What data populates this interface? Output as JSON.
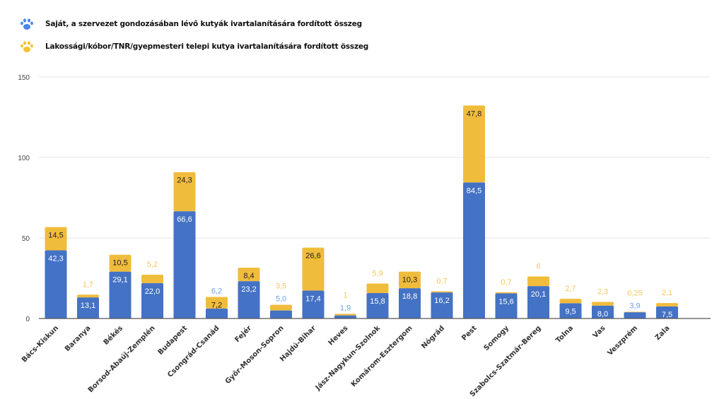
{
  "legend": [
    {
      "label": "Saját, a szervezet gondozásában lévő kutyák ivartalanítására fordított összeg",
      "icon": "paw-icon",
      "color": "#4a86e8"
    },
    {
      "label": "Lakossági/kóbor/TNR/gyepmesteri telepi kutya ivartalanítására fordított összeg",
      "icon": "paw-icon",
      "color": "#f1c232"
    }
  ],
  "chart_data": {
    "type": "bar",
    "stacked": true,
    "title": "",
    "xlabel": "",
    "ylabel": "",
    "ylim": [
      0,
      150
    ],
    "yticks": [
      "0",
      "50",
      "100",
      "150"
    ],
    "grid": true,
    "legend_position": "top-left",
    "categories": [
      "Bács-Kiskun",
      "Baranya",
      "Békés",
      "Borsod-Abaúj-Zemplén",
      "Budapest",
      "Csongrád-Csanád",
      "Fejér",
      "Győr-Moson-Sopron",
      "Hajdú-Bihar",
      "Heves",
      "Jász-Nagykun-Szolnok",
      "Komárom-Esztergom",
      "Nógrád",
      "Pest",
      "Somogy",
      "Szabolcs-Szatmár-Bereg",
      "Tolna",
      "Vas",
      "Veszprém",
      "Zala"
    ],
    "series": [
      {
        "name": "Saját, a szervezet gondozásában lévő kutyák ivartalanítására fordított összeg",
        "color": "#4472c4",
        "labelColor": "#6d9eeb",
        "values": [
          42.3,
          13.1,
          29.1,
          22.0,
          66.6,
          6.2,
          23.2,
          5.0,
          17.4,
          1.9,
          15.8,
          18.8,
          16.2,
          84.5,
          15.6,
          20.1,
          9.5,
          8.0,
          3.9,
          7.5
        ],
        "labels": [
          "42,3",
          "13,1",
          "29,1",
          "22,0",
          "66,6",
          "6,2",
          "23,2",
          "5,0",
          "17,4",
          "1,9",
          "15,8",
          "18,8",
          "16,2",
          "84,5",
          "15,6",
          "20,1",
          "9,5",
          "8,0",
          "3,9",
          "7,5"
        ]
      },
      {
        "name": "Lakossági/kóbor/TNR/gyepmesteri telepi kutya ivartalanítására fordított összeg",
        "color": "#f0bc3c",
        "labelColor": "#f6c65b",
        "values": [
          14.5,
          1.7,
          10.5,
          5.2,
          24.3,
          7.2,
          8.4,
          3.5,
          26.6,
          1,
          5.9,
          10.3,
          0.7,
          47.8,
          0.7,
          6,
          2.7,
          2.3,
          0.25,
          2.1
        ],
        "labels": [
          "14,5",
          "1,7",
          "10,5",
          "5,2",
          "24,3",
          "7,2",
          "8,4",
          "3,5",
          "26,6",
          "1",
          "5,9",
          "10,3",
          "0,7",
          "47,8",
          "0,7",
          "6",
          "2,7",
          "2,3",
          "0,25",
          "2,1"
        ]
      }
    ]
  }
}
